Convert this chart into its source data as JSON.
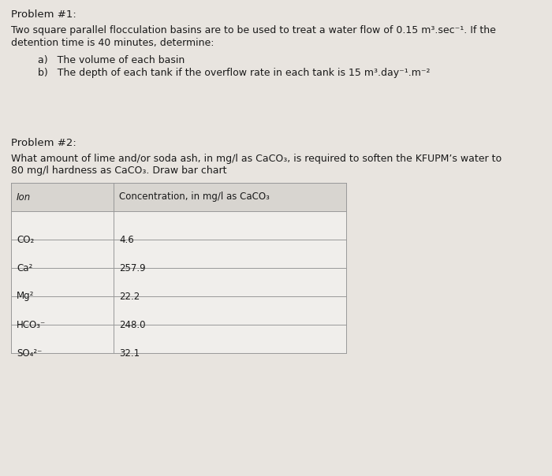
{
  "background_color": "#e8e4df",
  "problem1_label": "Problem #1:",
  "problem1_text_line1": "Two square parallel flocculation basins are to be used to treat a water flow of 0.15 m³.sec⁻¹. If the",
  "problem1_text_line2": "detention time is 40 minutes, determine:",
  "problem1_a": "a)   The volume of each basin",
  "problem1_b": "b)   The depth of each tank if the overflow rate in each tank is 15 m³.day⁻¹.m⁻²",
  "problem2_label": "Problem #2:",
  "problem2_text_line1": "What amount of lime and/or soda ash, in mg/l as CaCO₃, is required to soften the KFUPM’s water to",
  "problem2_text_line2": "80 mg/l hardness as CaCO₃. Draw bar chart",
  "table_header_col1": "Ion",
  "table_header_col2": "Concentration, in mg/l as CaCO₃",
  "table_ions": [
    "CO₂",
    "Ca²",
    "Mg²",
    "HCO₃⁻",
    "SO₄²⁻"
  ],
  "table_values": [
    "4.6",
    "257.9",
    "22.2",
    "248.0",
    "32.1"
  ],
  "font_size_label": 9.5,
  "font_size_body": 9.0,
  "font_size_table": 8.5,
  "text_color": "#1a1a1a",
  "table_bg_header": "#d8d5d0",
  "table_bg_cell": "#f0eeeb",
  "table_line_color": "#999999"
}
